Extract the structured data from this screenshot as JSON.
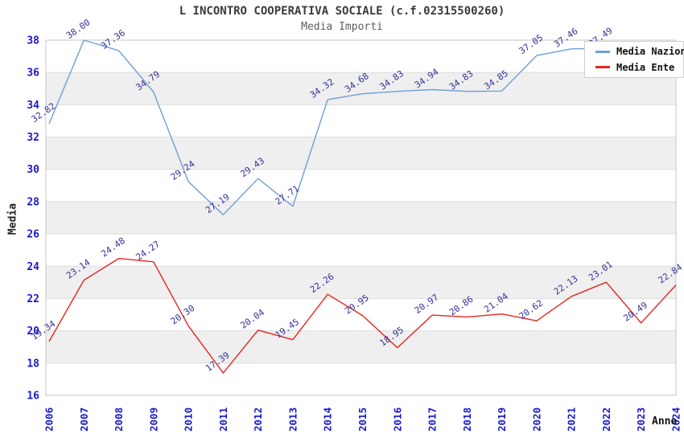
{
  "header": {
    "title": "L INCONTRO COOPERATIVA SOCIALE (c.f.02315500260)",
    "subtitle": "Media Importi"
  },
  "legend": {
    "items": [
      {
        "label": "Media Nazionale",
        "color": "#6d9fd8"
      },
      {
        "label": "Media Ente",
        "color": "#e8251f"
      }
    ]
  },
  "axes": {
    "y_title": "Media",
    "x_title": "Anno",
    "y_ticks": [
      38,
      36,
      34,
      32,
      30,
      28,
      26,
      24,
      22,
      20,
      18,
      16
    ],
    "x_ticks": [
      "2006",
      "2007",
      "2008",
      "2009",
      "2010",
      "2011",
      "2012",
      "2013",
      "2014",
      "2015",
      "2016",
      "2017",
      "2018",
      "2019",
      "2020",
      "2021",
      "2022",
      "2023",
      "2024"
    ]
  },
  "chart_data": {
    "type": "line",
    "title": "L INCONTRO COOPERATIVA SOCIALE (c.f.02315500260)",
    "subtitle": "Media Importi",
    "xlabel": "Anno",
    "ylabel": "Media",
    "ylim": [
      16,
      38
    ],
    "x": [
      2006,
      2007,
      2008,
      2009,
      2010,
      2011,
      2012,
      2013,
      2014,
      2015,
      2016,
      2017,
      2018,
      2019,
      2020,
      2021,
      2022,
      2023,
      2024
    ],
    "series": [
      {
        "name": "Media Nazionale",
        "color": "#6d9fd8",
        "values": [
          32.82,
          38.0,
          37.36,
          34.79,
          29.24,
          27.19,
          29.43,
          27.71,
          34.32,
          34.68,
          34.83,
          34.94,
          34.83,
          34.85,
          37.05,
          37.46,
          37.49,
          null,
          null
        ]
      },
      {
        "name": "Media Ente",
        "color": "#e8251f",
        "values": [
          19.34,
          23.14,
          24.48,
          24.27,
          20.3,
          17.39,
          20.04,
          19.45,
          22.26,
          20.95,
          18.95,
          20.97,
          20.86,
          21.04,
          20.62,
          22.13,
          23.01,
          20.49,
          22.84
        ]
      }
    ],
    "point_labels_format": "2-decimals, rotated, navy",
    "legend_position": "top-right, covers 2021 national label",
    "grid": "horizontal lines every 2 units, alternating gray bands"
  },
  "colors": {
    "tick_label": "#1a1ace",
    "data_label": "#32329b",
    "band_gray": "#efefef",
    "grid_line": "#dedede",
    "plot_border": "#c4c4c4",
    "national_line": "#6d9fd8",
    "ente_line": "#e8251f"
  }
}
